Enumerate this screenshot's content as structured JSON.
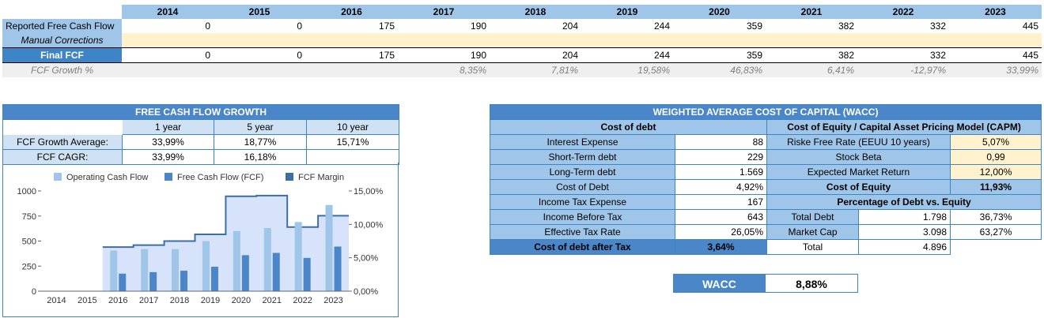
{
  "top": {
    "years": [
      "2014",
      "2015",
      "2016",
      "2017",
      "2018",
      "2019",
      "2020",
      "2021",
      "2022",
      "2023"
    ],
    "rows": [
      {
        "label": "Reported Free Cash Flow",
        "values": [
          "0",
          "0",
          "175",
          "190",
          "204",
          "244",
          "359",
          "382",
          "332",
          "445"
        ]
      },
      {
        "label": "Manual Corrections",
        "values": [
          "",
          "",
          "",
          "",
          "",
          "",
          "",
          "",
          "",
          ""
        ]
      },
      {
        "label": "Final FCF",
        "values": [
          "0",
          "0",
          "175",
          "190",
          "204",
          "244",
          "359",
          "382",
          "332",
          "445"
        ]
      },
      {
        "label": "FCF Growth %",
        "values": [
          "",
          "",
          "",
          "8,35%",
          "7,81%",
          "19,58%",
          "46,83%",
          "6,41%",
          "-12,97%",
          "33,99%"
        ]
      }
    ]
  },
  "growth": {
    "title": "FREE CASH FLOW GROWTH",
    "cols": [
      "1 year",
      "5 year",
      "10 year"
    ],
    "avg_label": "FCF Growth Average:",
    "avg": [
      "33,99%",
      "18,77%",
      "15,71%"
    ],
    "cagr_label": "FCF CAGR:",
    "cagr": [
      "33,99%",
      "16,18%",
      ""
    ]
  },
  "chart_data": {
    "type": "bar",
    "categories": [
      "2014",
      "2015",
      "2016",
      "2017",
      "2018",
      "2019",
      "2020",
      "2021",
      "2022",
      "2023"
    ],
    "series": [
      {
        "name": "Operating Cash Flow",
        "type": "bar",
        "values": [
          0,
          0,
          405,
          420,
          420,
          500,
          600,
          630,
          690,
          860
        ],
        "color": "#9fc5e8"
      },
      {
        "name": "Free Cash Flow (FCF)",
        "type": "bar",
        "values": [
          0,
          0,
          175,
          190,
          204,
          244,
          359,
          382,
          332,
          445
        ],
        "color": "#4a86c8"
      },
      {
        "name": "FCF Margin",
        "type": "area",
        "axis": "right",
        "values": [
          null,
          null,
          6.6,
          6.9,
          7.5,
          8.5,
          14.2,
          14.3,
          9.6,
          11.3
        ],
        "color": "#3d6ea5"
      }
    ],
    "yticks_left": [
      "0",
      "250",
      "500",
      "750",
      "1000"
    ],
    "yticks_right": [
      "0,00%",
      "5,00%",
      "10,00%",
      "15,00%"
    ],
    "ylim": [
      0,
      1000
    ],
    "ylim_right": [
      0,
      15
    ],
    "legend": "top"
  },
  "wacc": {
    "title": "WEIGHTED AVERAGE COST OF CAPITAL (WACC)",
    "debt_header": "Cost of debt",
    "equity_header": "Cost of Equity / Capital Asset Pricing Model (CAPM)",
    "debt_rows": [
      {
        "label": "Interest Expense",
        "value": "88"
      },
      {
        "label": "Short-Term debt",
        "value": "229"
      },
      {
        "label": "Long-Term debt",
        "value": "1.569"
      },
      {
        "label": "Cost of Debt",
        "value": "4,92%"
      },
      {
        "label": "Income Tax Expense",
        "value": "167"
      },
      {
        "label": "Income Before Tax",
        "value": "643"
      },
      {
        "label": "Effective Tax Rate",
        "value": "26,05%"
      }
    ],
    "debt_after_tax_label": "Cost of debt after Tax",
    "debt_after_tax_value": "3,64%",
    "equity_rows": [
      {
        "label": "Riske Free Rate (EEUU 10 years)",
        "value": "5,07%"
      },
      {
        "label": "Stock Beta",
        "value": "0,99"
      },
      {
        "label": "Expected Market Return",
        "value": "12,00%"
      }
    ],
    "cost_equity_label": "Cost of Equity",
    "cost_equity_value": "11,93%",
    "pct_header": "Percentage of Debt vs. Equity",
    "pct_rows": [
      {
        "label": "Total Debt",
        "value": "1.798",
        "pct": "36,73%"
      },
      {
        "label": "Market Cap",
        "value": "3.098",
        "pct": "63,27%"
      },
      {
        "label": "Total",
        "value": "4.896",
        "pct": ""
      }
    ],
    "wacc_label": "WACC",
    "wacc_value": "8,88%"
  }
}
